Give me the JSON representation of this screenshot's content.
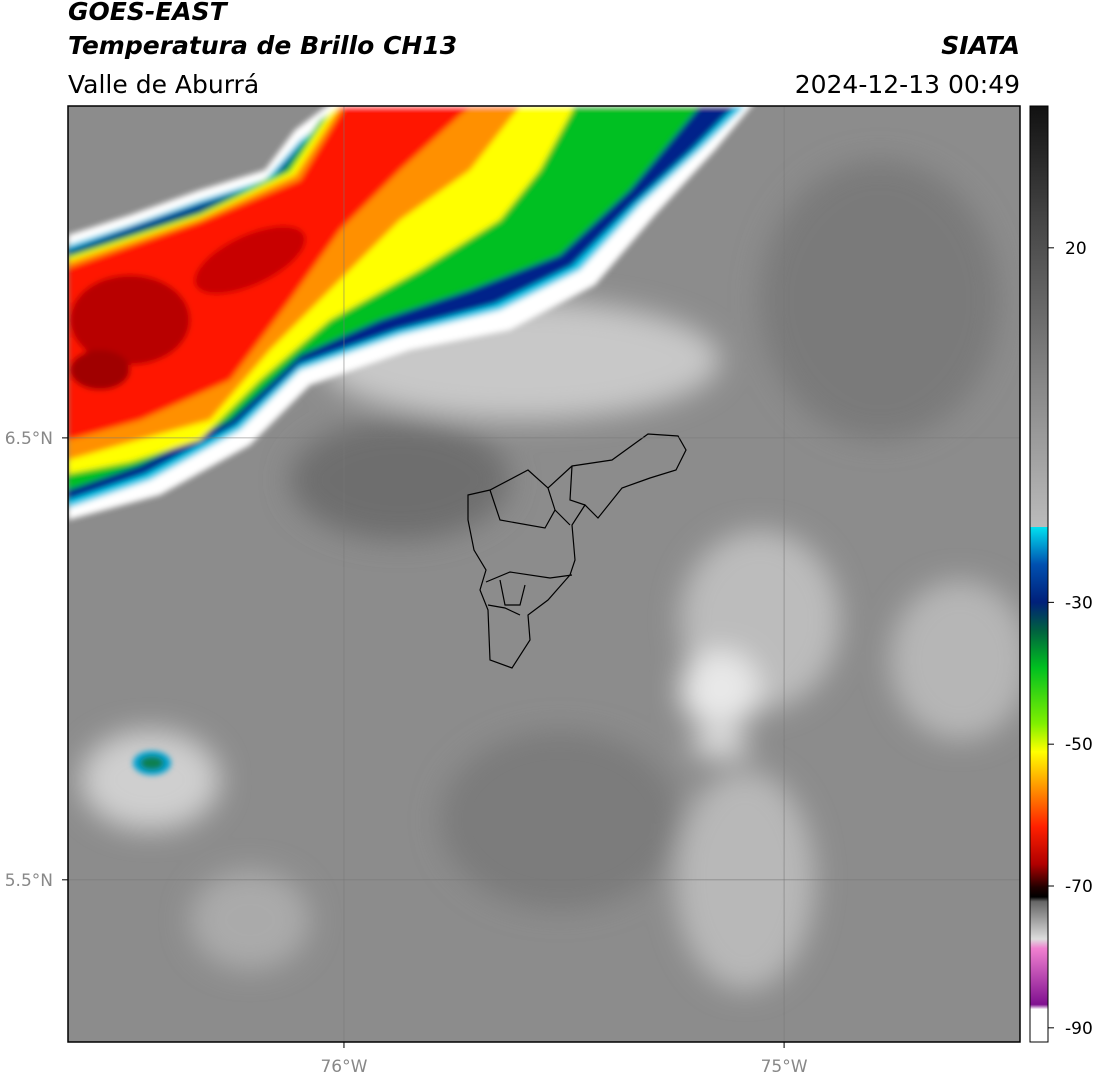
{
  "header": {
    "title": "GOES-EAST",
    "subtitle": "Temperatura de Brillo CH13",
    "region": "Valle de Aburrá",
    "source": "SIATA",
    "datetime": "2024-12-13 00:49"
  },
  "map": {
    "lon_range": [
      -76.627,
      -74.464
    ],
    "lat_range": [
      5.133,
      7.251
    ],
    "lon_ticks": [
      {
        "value": -76,
        "label": "76°W"
      },
      {
        "value": -75,
        "label": "75°W"
      }
    ],
    "lat_ticks": [
      {
        "value": 6.5,
        "label": "6.5°N"
      },
      {
        "value": 5.5,
        "label": "5.5°N"
      }
    ]
  },
  "colorbar": {
    "range": [
      -92,
      40
    ],
    "ticks": [
      20,
      -30,
      -50,
      -70,
      -90
    ]
  }
}
